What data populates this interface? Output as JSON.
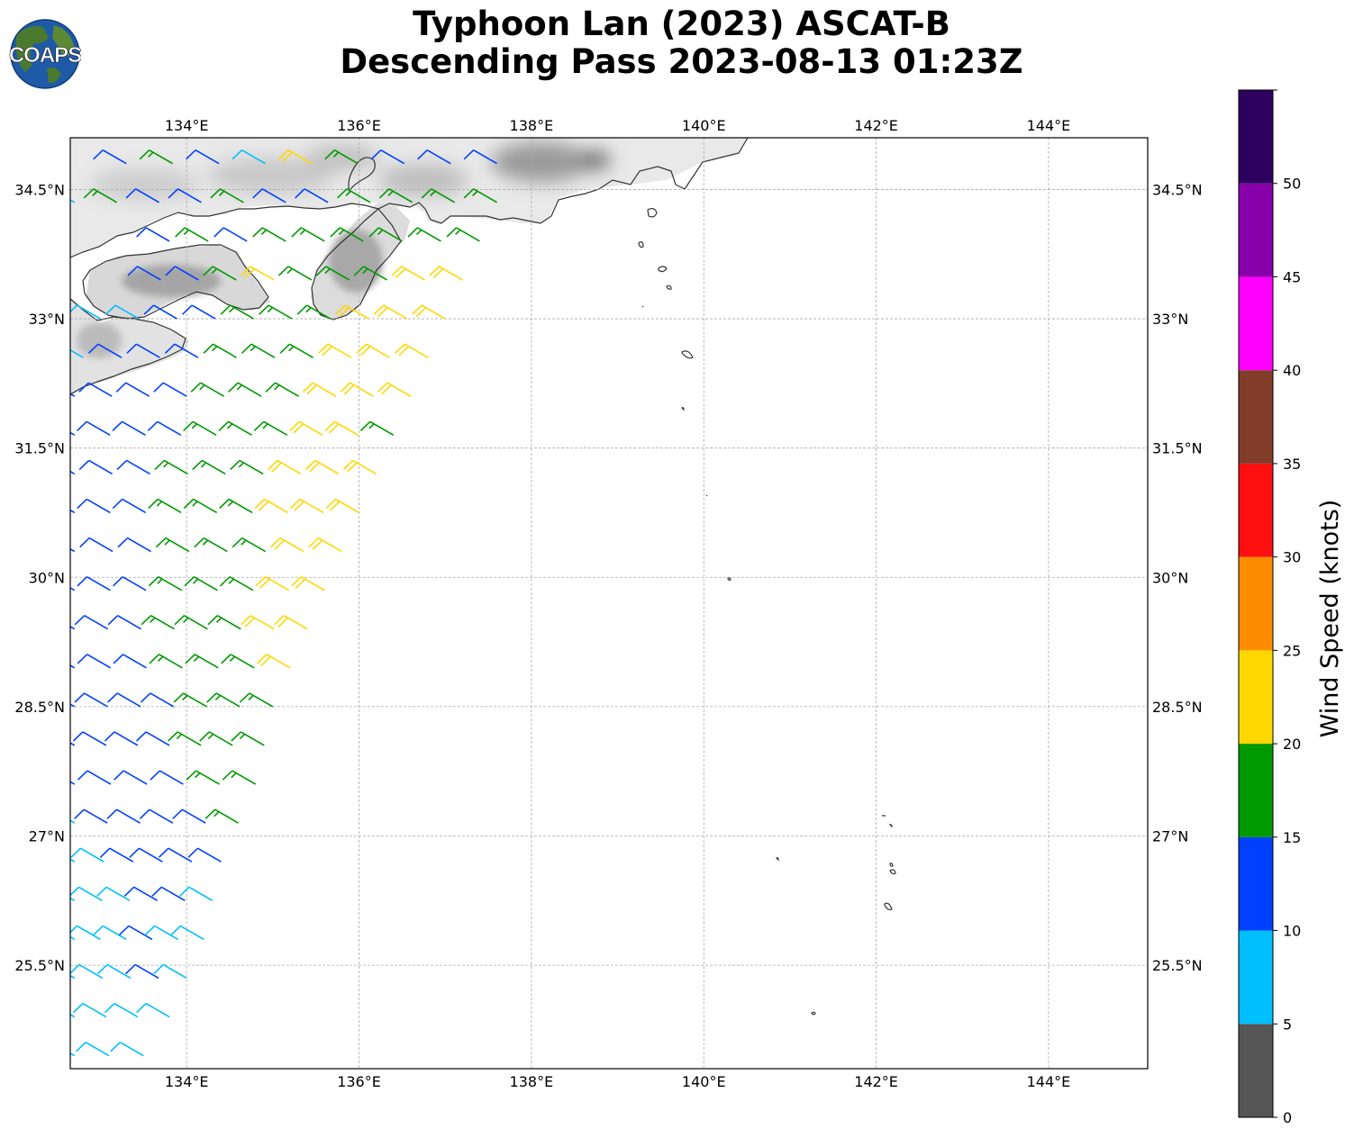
{
  "title": {
    "line1": "Typhoon Lan (2023) ASCAT-B",
    "line2": "Descending Pass 2023-08-13 01:23Z"
  },
  "logo": {
    "text": "COAPS",
    "icon": "globe-icon",
    "ocean_color": "#1e5aa8",
    "land_color": "#4a7a2e"
  },
  "map": {
    "lon_range": [
      132.65,
      145.15
    ],
    "lat_range": [
      24.3,
      35.1
    ],
    "x_ticks": [
      "134°E",
      "136°E",
      "138°E",
      "140°E",
      "142°E",
      "144°E"
    ],
    "x_tick_values": [
      134,
      136,
      138,
      140,
      142,
      144
    ],
    "y_ticks": [
      "25.5°N",
      "27°N",
      "28.5°N",
      "30°N",
      "31.5°N",
      "33°N",
      "34.5°N"
    ],
    "y_tick_values": [
      25.5,
      27,
      28.5,
      30,
      31.5,
      33,
      34.5
    ],
    "grid": true,
    "land_shading": "terrain-grayscale",
    "coastline_color": "#333333"
  },
  "colorbar": {
    "label": "Wind Speed (knots)",
    "ticks": [
      "0",
      "5",
      "10",
      "15",
      "20",
      "25",
      "30",
      "35",
      "40",
      "45",
      "50"
    ],
    "bins": [
      {
        "min": 0,
        "max": 5,
        "color": "#555555"
      },
      {
        "min": 5,
        "max": 10,
        "color": "#00bfff"
      },
      {
        "min": 10,
        "max": 15,
        "color": "#0040ff"
      },
      {
        "min": 15,
        "max": 20,
        "color": "#009900"
      },
      {
        "min": 20,
        "max": 25,
        "color": "#ffd700"
      },
      {
        "min": 25,
        "max": 30,
        "color": "#ff8c00"
      },
      {
        "min": 30,
        "max": 35,
        "color": "#ff1010"
      },
      {
        "min": 35,
        "max": 40,
        "color": "#823c2a"
      },
      {
        "min": 40,
        "max": 45,
        "color": "#ff00ff"
      },
      {
        "min": 45,
        "max": 50,
        "color": "#8800aa"
      },
      {
        "min": 50,
        "max": 55,
        "color": "#2d0060"
      }
    ]
  },
  "chart_data": {
    "type": "wind-barb-swath",
    "swath_rows": [
      {
        "lat": 34.8,
        "lon_start": 133.3,
        "lon_end": 137.6,
        "speeds": [
          12,
          17,
          12,
          8,
          22,
          17,
          12,
          12,
          12
        ]
      },
      {
        "lat": 34.35,
        "lon_start": 132.7,
        "lon_end": 137.6,
        "speeds": [
          8,
          17,
          12,
          12,
          17,
          12,
          12,
          17,
          17,
          17,
          17
        ]
      },
      {
        "lat": 33.9,
        "lon_start": 133.8,
        "lon_end": 137.4,
        "speeds": [
          12,
          17,
          12,
          17,
          17,
          17,
          17,
          17,
          17
        ]
      },
      {
        "lat": 33.45,
        "lon_start": 133.7,
        "lon_end": 137.2,
        "speeds": [
          12,
          12,
          17,
          22,
          17,
          17,
          17,
          22,
          22
        ]
      },
      {
        "lat": 33.0,
        "lon_start": 133.0,
        "lon_end": 137.0,
        "speeds": [
          8,
          8,
          12,
          12,
          17,
          17,
          17,
          22,
          22,
          22
        ]
      },
      {
        "lat": 32.55,
        "lon_start": 132.8,
        "lon_end": 136.8,
        "speeds": [
          8,
          12,
          12,
          12,
          17,
          17,
          17,
          22,
          22,
          22
        ]
      },
      {
        "lat": 32.1,
        "lon_start": 132.7,
        "lon_end": 136.6,
        "speeds": [
          12,
          12,
          12,
          12,
          17,
          17,
          17,
          22,
          22,
          22
        ]
      },
      {
        "lat": 31.65,
        "lon_start": 132.7,
        "lon_end": 136.4,
        "speeds": [
          12,
          12,
          12,
          12,
          17,
          17,
          17,
          22,
          22,
          17
        ]
      },
      {
        "lat": 31.2,
        "lon_start": 132.7,
        "lon_end": 136.2,
        "speeds": [
          12,
          12,
          12,
          17,
          17,
          17,
          22,
          22,
          22
        ]
      },
      {
        "lat": 30.75,
        "lon_start": 132.7,
        "lon_end": 136.0,
        "speeds": [
          12,
          12,
          12,
          17,
          17,
          17,
          22,
          22,
          22
        ]
      },
      {
        "lat": 30.3,
        "lon_start": 132.7,
        "lon_end": 135.8,
        "speeds": [
          12,
          12,
          12,
          17,
          17,
          17,
          22,
          22
        ]
      },
      {
        "lat": 29.85,
        "lon_start": 132.7,
        "lon_end": 135.6,
        "speeds": [
          12,
          12,
          12,
          17,
          17,
          17,
          22,
          22
        ]
      },
      {
        "lat": 29.4,
        "lon_start": 132.7,
        "lon_end": 135.4,
        "speeds": [
          12,
          12,
          12,
          17,
          17,
          17,
          22,
          22
        ]
      },
      {
        "lat": 28.95,
        "lon_start": 132.7,
        "lon_end": 135.2,
        "speeds": [
          12,
          12,
          12,
          17,
          17,
          17,
          22
        ]
      },
      {
        "lat": 28.5,
        "lon_start": 132.7,
        "lon_end": 135.0,
        "speeds": [
          12,
          12,
          12,
          12,
          17,
          17,
          17
        ]
      },
      {
        "lat": 28.05,
        "lon_start": 132.7,
        "lon_end": 134.9,
        "speeds": [
          12,
          12,
          12,
          12,
          17,
          17,
          17
        ]
      },
      {
        "lat": 27.6,
        "lon_start": 132.7,
        "lon_end": 134.8,
        "speeds": [
          12,
          12,
          12,
          12,
          17,
          17
        ]
      },
      {
        "lat": 27.15,
        "lon_start": 132.7,
        "lon_end": 134.6,
        "speeds": [
          8,
          12,
          12,
          12,
          12,
          17
        ]
      },
      {
        "lat": 26.7,
        "lon_start": 132.7,
        "lon_end": 134.4,
        "speeds": [
          8,
          8,
          12,
          12,
          12,
          12
        ]
      },
      {
        "lat": 26.25,
        "lon_start": 132.7,
        "lon_end": 134.3,
        "speeds": [
          8,
          8,
          8,
          12,
          12,
          8
        ]
      },
      {
        "lat": 25.8,
        "lon_start": 132.7,
        "lon_end": 134.2,
        "speeds": [
          8,
          8,
          8,
          12,
          8,
          8
        ]
      },
      {
        "lat": 25.35,
        "lon_start": 132.7,
        "lon_end": 134.0,
        "speeds": [
          8,
          8,
          8,
          12,
          8
        ]
      },
      {
        "lat": 24.9,
        "lon_start": 132.7,
        "lon_end": 133.8,
        "speeds": [
          8,
          8,
          8,
          8
        ]
      },
      {
        "lat": 24.45,
        "lon_start": 132.7,
        "lon_end": 133.5,
        "speeds": [
          8,
          8,
          8
        ]
      }
    ],
    "wind_from_direction_deg": 300
  }
}
